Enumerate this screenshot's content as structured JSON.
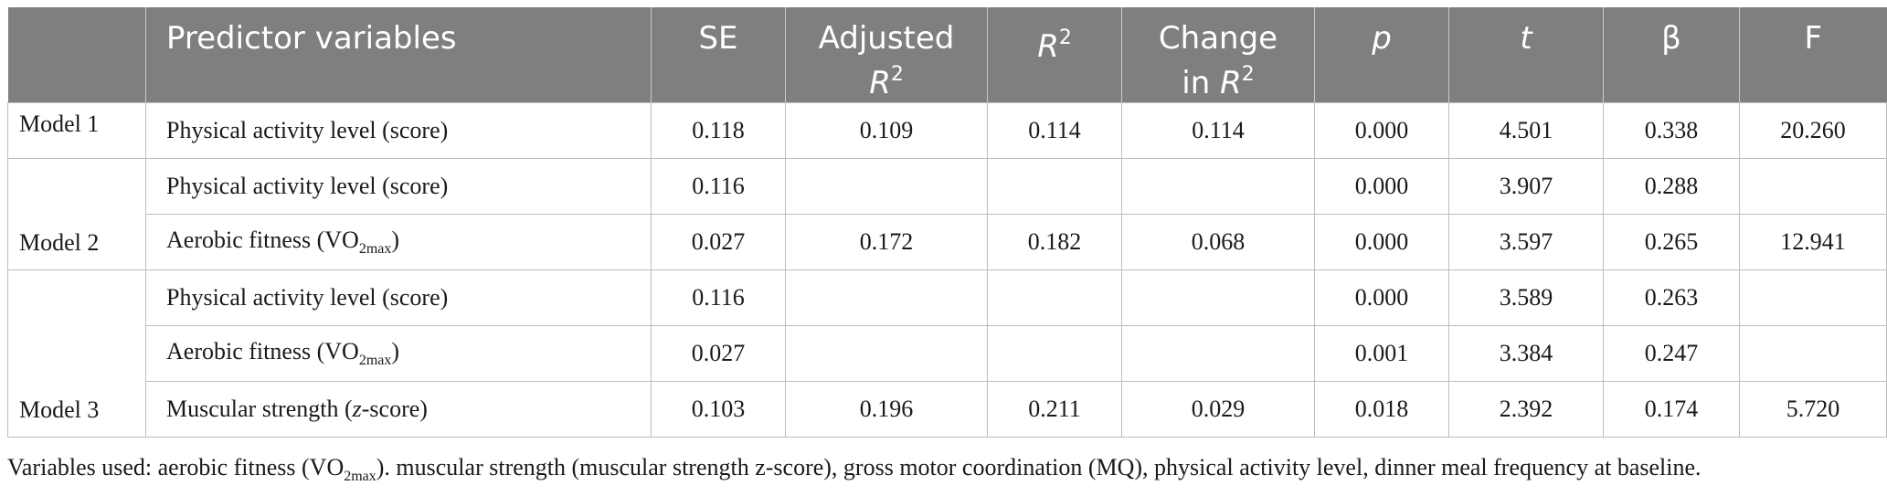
{
  "header": {
    "col0": "",
    "predictor": "Predictor variables",
    "se": "SE",
    "adj_r2_a": "Adjusted",
    "adj_r2_b": "R",
    "adj_r2_sup": "2",
    "r2": "R",
    "r2_sup": "2",
    "change_a": "Change",
    "change_b": "in ",
    "change_r": "R",
    "change_sup": "2",
    "p": "p",
    "t": "t",
    "beta": "β",
    "f": "F"
  },
  "rows": [
    {
      "model": "Model 1",
      "pred": "Physical activity level (score)",
      "se": "0.118",
      "adj": "0.109",
      "r2": "0.114",
      "chg": "0.114",
      "p": "0.000",
      "t": "4.501",
      "beta": "0.338",
      "f": "20.260"
    },
    {
      "model": "",
      "pred": "Physical activity level (score)",
      "se": "0.116",
      "adj": "",
      "r2": "",
      "chg": "",
      "p": "0.000",
      "t": "3.907",
      "beta": "0.288",
      "f": ""
    },
    {
      "model": "Model 2",
      "pred_a": "Aerobic fitness (VO",
      "pred_sub": "2max",
      "pred_b": ")",
      "se": "0.027",
      "adj": "0.172",
      "r2": "0.182",
      "chg": "0.068",
      "p": "0.000",
      "t": "3.597",
      "beta": "0.265",
      "f": "12.941"
    },
    {
      "model": "",
      "pred": "Physical activity level (score)",
      "se": "0.116",
      "adj": "",
      "r2": "",
      "chg": "",
      "p": "0.000",
      "t": "3.589",
      "beta": "0.263",
      "f": ""
    },
    {
      "model": "",
      "pred_a": "Aerobic fitness (VO",
      "pred_sub": "2max",
      "pred_b": ")",
      "se": "0.027",
      "adj": "",
      "r2": "",
      "chg": "",
      "p": "0.001",
      "t": "3.384",
      "beta": "0.247",
      "f": ""
    },
    {
      "model": "Model 3",
      "pred_a": "Muscular strength (",
      "pred_it": "z",
      "pred_b": "-score)",
      "se": "0.103",
      "adj": "0.196",
      "r2": "0.211",
      "chg": "0.029",
      "p": "0.018",
      "t": "2.392",
      "beta": "0.174",
      "f": "5.720"
    }
  ],
  "note": {
    "a": "Variables used: aerobic fitness (VO",
    "sub": "2max",
    "b": "). muscular strength (muscular strength z-score), gross motor coordination (MQ), physical activity level, dinner meal frequency at baseline."
  },
  "colors": {
    "header_bg": "#7f7f7f",
    "header_text": "#ffffff",
    "border": "#bdbdbd"
  }
}
